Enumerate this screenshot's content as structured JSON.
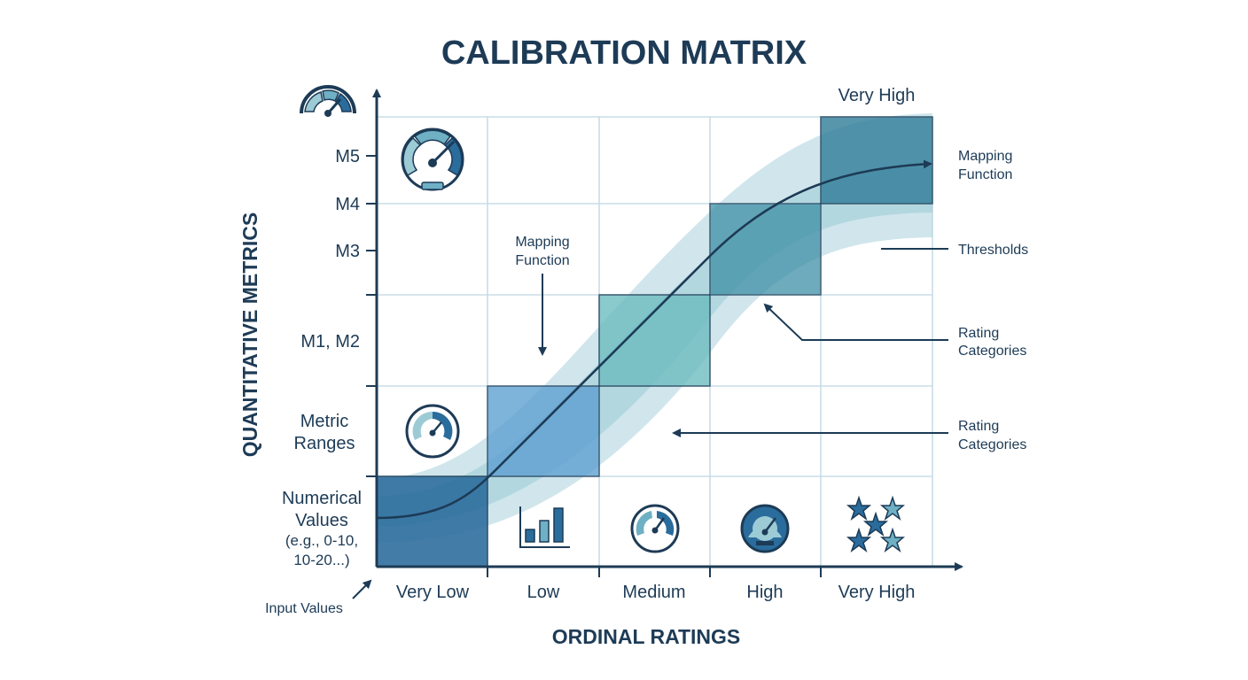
{
  "title": "CALIBRATION MATRIX",
  "x_axis_title": "ORDINAL RATINGS",
  "y_axis_title": "QUANTITATIVE METRICS",
  "x_categories": [
    "Very Low",
    "Low",
    "Medium",
    "High",
    "Very High"
  ],
  "top_label": "Very High",
  "y_labels": {
    "m5": "M5",
    "m4": "M4",
    "m3": "M3",
    "m12": "M1, M2",
    "metric_ranges": [
      "Metric",
      "Ranges"
    ],
    "numerical_values": [
      "Numerical",
      "Values",
      "(e.g., 0-10,",
      "10-20...)"
    ]
  },
  "annotations": {
    "input_values": "Input Values",
    "mapping_function_top": [
      "Mapping",
      "Function"
    ],
    "mapping_function_inner": [
      "Mapping",
      "Function"
    ],
    "thresholds": "Thresholds",
    "rating_categories_upper": [
      "Rating",
      "Categories"
    ],
    "rating_categories_lower": [
      "Rating",
      "Categories"
    ]
  },
  "colors": {
    "dark_navy": "#1d3b56",
    "grid": "#c8dde6",
    "band": "#a9d2dc",
    "cell_blue_dark": "#2a6c9c",
    "cell_blue_mid": "#5b9ed0",
    "cell_teal_light": "#6dbcc0",
    "cell_teal_mid": "#3e8fa6",
    "cell_teal_dark": "#2f7d98"
  },
  "icons": [
    "gauge-icon",
    "bar-chart-icon",
    "stars-icon"
  ]
}
